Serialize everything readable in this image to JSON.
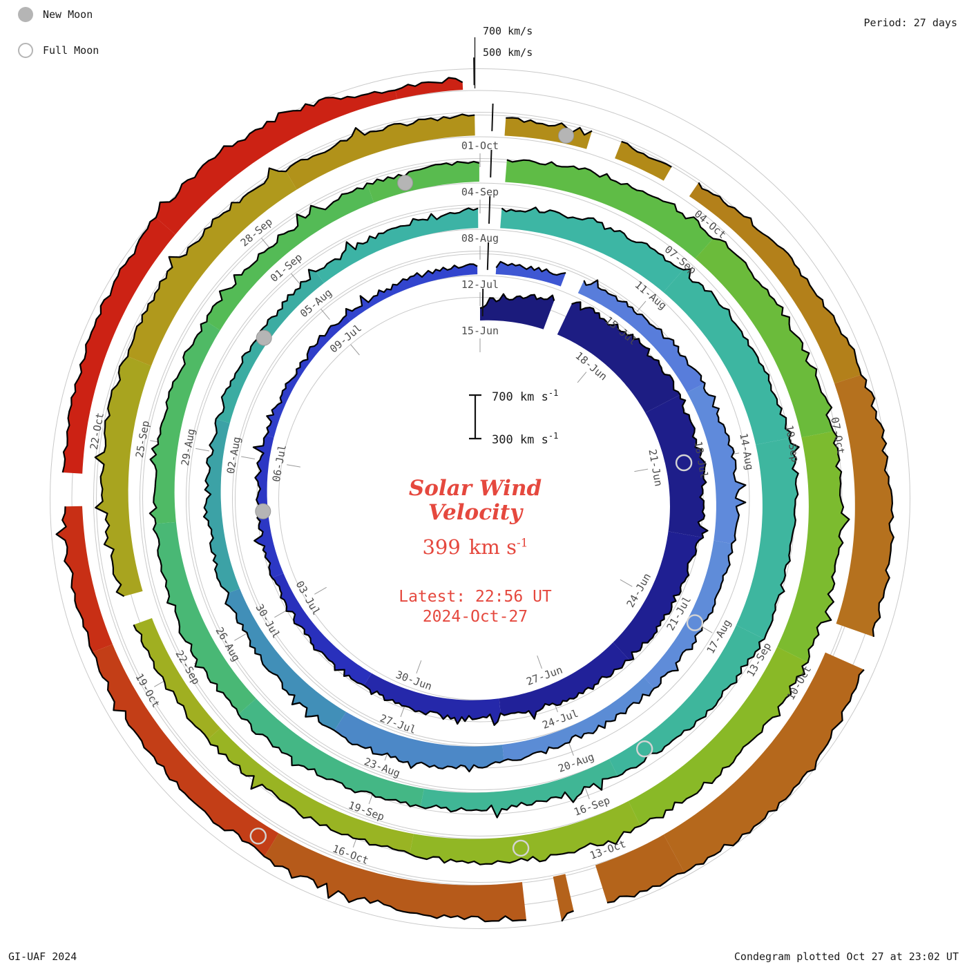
{
  "header": {
    "legend": {
      "new_moon": "New Moon",
      "full_moon": "Full Moon"
    },
    "period": "Period: 27 days"
  },
  "footer": {
    "credit": "GI-UAF 2024",
    "plotted": "Condegram plotted Oct 27 at 23:02 UT"
  },
  "axis_pointers": {
    "outer": "700 km/s",
    "inner": "500 km/s"
  },
  "scalebar": {
    "top": "700 km s",
    "bottom": "300 km s",
    "exp": "-1"
  },
  "center": {
    "title_line1": "Solar Wind",
    "title_line2": "Velocity",
    "value_number": "399",
    "value_unit": "km s",
    "value_exp": "-1",
    "latest": "Latest: 22:56 UT",
    "date": "2024-Oct-27"
  },
  "colors": {
    "accent": "#e5483e",
    "moon_gray": "#b5b5b5"
  },
  "chart_data": {
    "type": "area",
    "variant": "condegram-spiral (27-day solar rotation per ring, clockwise from top)",
    "title": "Solar Wind Velocity",
    "units": "km/s",
    "period_days": 27,
    "start_date": "2024-06-15",
    "end_date": "2024-10-27",
    "latest": {
      "value_kms": 399,
      "time_ut": "22:56",
      "date": "2024-Oct-27"
    },
    "radial_levels_kms": [
      300,
      500,
      700
    ],
    "x_unit": "days since 2024-06-15 (one ring = 27 days)",
    "daily_velocity_kms": [
      420,
      560,
      620,
      640,
      660,
      630,
      640,
      600,
      560,
      540,
      520,
      500,
      480,
      460,
      470,
      450,
      440,
      430,
      410,
      400,
      390,
      380,
      370,
      360,
      365,
      370,
      380,
      390,
      400,
      420,
      430,
      450,
      480,
      500,
      490,
      470,
      450,
      440,
      430,
      420,
      450,
      500,
      520,
      500,
      470,
      450,
      440,
      430,
      420,
      410,
      400,
      410,
      420,
      440,
      470,
      510,
      540,
      560,
      580,
      600,
      620,
      600,
      580,
      560,
      520,
      480,
      460,
      450,
      460,
      480,
      500,
      510,
      520,
      510,
      490,
      480,
      470,
      460,
      450,
      460,
      470,
      490,
      520,
      550,
      570,
      580,
      590,
      600,
      610,
      600,
      590,
      580,
      560,
      550,
      530,
      500,
      470,
      450,
      440,
      450,
      480,
      520,
      550,
      560,
      550,
      530,
      510,
      490,
      470,
      450,
      440,
      460,
      500,
      550,
      600,
      640,
      660,
      700,
      730,
      710,
      670,
      630,
      590,
      560,
      540,
      520,
      500,
      490,
      480,
      470,
      490,
      520,
      560,
      540,
      399
    ],
    "date_ticks": [
      {
        "d": 0,
        "t": "15-Jun"
      },
      {
        "d": 3,
        "t": "18-Jun"
      },
      {
        "d": 6,
        "t": "21-Jun"
      },
      {
        "d": 9,
        "t": "24-Jun"
      },
      {
        "d": 12,
        "t": "27-Jun"
      },
      {
        "d": 15,
        "t": "30-Jun"
      },
      {
        "d": 18,
        "t": "03-Jul"
      },
      {
        "d": 21,
        "t": "06-Jul"
      },
      {
        "d": 24,
        "t": "09-Jul"
      },
      {
        "d": 27,
        "t": "12-Jul"
      },
      {
        "d": 30,
        "t": "15-Jul"
      },
      {
        "d": 33,
        "t": "18-Jul"
      },
      {
        "d": 36,
        "t": "21-Jul"
      },
      {
        "d": 39,
        "t": "24-Jul"
      },
      {
        "d": 42,
        "t": "27-Jul"
      },
      {
        "d": 45,
        "t": "30-Jul"
      },
      {
        "d": 48,
        "t": "02-Aug"
      },
      {
        "d": 51,
        "t": "05-Aug"
      },
      {
        "d": 54,
        "t": "08-Aug"
      },
      {
        "d": 57,
        "t": "11-Aug"
      },
      {
        "d": 60,
        "t": "14-Aug"
      },
      {
        "d": 63,
        "t": "17-Aug"
      },
      {
        "d": 66,
        "t": "20-Aug"
      },
      {
        "d": 69,
        "t": "23-Aug"
      },
      {
        "d": 72,
        "t": "26-Aug"
      },
      {
        "d": 75,
        "t": "29-Aug"
      },
      {
        "d": 78,
        "t": "01-Sep"
      },
      {
        "d": 81,
        "t": "04-Sep"
      },
      {
        "d": 84,
        "t": "07-Sep"
      },
      {
        "d": 87,
        "t": "10-Sep"
      },
      {
        "d": 90,
        "t": "13-Sep"
      },
      {
        "d": 93,
        "t": "16-Sep"
      },
      {
        "d": 96,
        "t": "19-Sep"
      },
      {
        "d": 99,
        "t": "22-Sep"
      },
      {
        "d": 102,
        "t": "25-Sep"
      },
      {
        "d": 105,
        "t": "28-Sep"
      },
      {
        "d": 108,
        "t": "01-Oct"
      },
      {
        "d": 111,
        "t": "04-Oct"
      },
      {
        "d": 114,
        "t": "07-Oct"
      },
      {
        "d": 117,
        "t": "10-Oct"
      },
      {
        "d": 120,
        "t": "13-Oct"
      },
      {
        "d": 123,
        "t": "16-Oct"
      },
      {
        "d": 126,
        "t": "19-Oct"
      },
      {
        "d": 129,
        "t": "22-Oct"
      }
    ],
    "new_moon_days": [
      20,
      50,
      80,
      109
    ],
    "full_moon_days": [
      6,
      36,
      65,
      94,
      124
    ],
    "data_gap_days": [
      1.6,
      27.0,
      28.6,
      54.0,
      81.0,
      99.8,
      108.0,
      109.3,
      110.3,
      116.2,
      120.2,
      120.7,
      128.2
    ],
    "period_tick_days": [
      0.06,
      27.14,
      54.14,
      81.14,
      108.14,
      134.94
    ],
    "color_stops": [
      [
        0,
        "#1b1b7a"
      ],
      [
        12,
        "#21219a"
      ],
      [
        18,
        "#2a32c0"
      ],
      [
        27,
        "#3448d0"
      ],
      [
        31,
        "#5f88dd"
      ],
      [
        38,
        "#5f8dd8"
      ],
      [
        43,
        "#4486c0"
      ],
      [
        48,
        "#3aa8a0"
      ],
      [
        54,
        "#3db6a6"
      ],
      [
        66,
        "#3eb69a"
      ],
      [
        72,
        "#48b878"
      ],
      [
        78,
        "#54bb56"
      ],
      [
        84,
        "#62bc42"
      ],
      [
        90,
        "#86ba28"
      ],
      [
        98,
        "#9db322"
      ],
      [
        104,
        "#b09a1c"
      ],
      [
        110,
        "#b28a18"
      ],
      [
        115,
        "#b5701e"
      ],
      [
        122,
        "#b45e1a"
      ],
      [
        126,
        "#c63616"
      ],
      [
        130,
        "#cc2214"
      ],
      [
        135,
        "#cc2214"
      ]
    ],
    "legend_position": "top-left",
    "grid": true
  }
}
